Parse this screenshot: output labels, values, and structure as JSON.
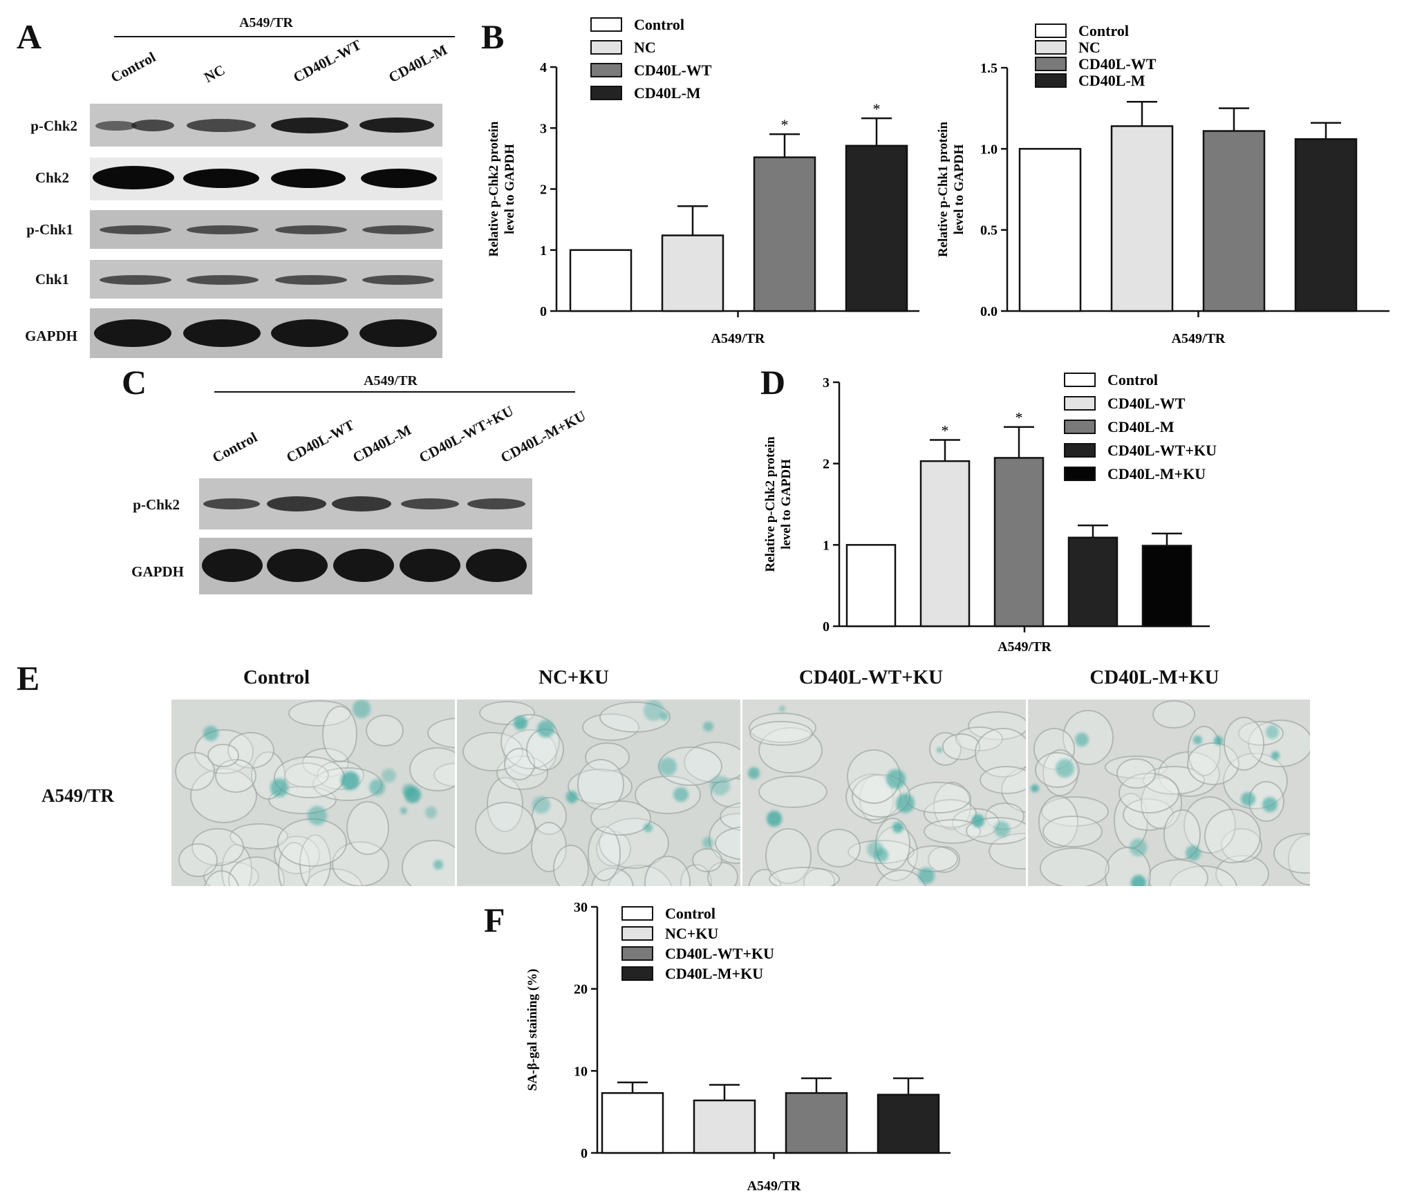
{
  "panel_labels": {
    "a": "A",
    "b": "B",
    "c": "C",
    "d": "D",
    "e": "E",
    "f": "F"
  },
  "blot_a": {
    "header": "A549/TR",
    "lanes": [
      "Control",
      "NC",
      "CD40L-WT",
      "CD40L-M"
    ],
    "rows": [
      "p-Chk2",
      "Chk2",
      "p-Chk1",
      "Chk1",
      "GAPDH"
    ]
  },
  "blot_c": {
    "header": "A549/TR",
    "lanes": [
      "Control",
      "CD40L-WT",
      "CD40L-M",
      "CD40L-WT+KU",
      "CD40L-M+KU"
    ],
    "rows": [
      "p-Chk2",
      "GAPDH"
    ]
  },
  "micrographs_e": {
    "columns": [
      "Control",
      "NC+KU",
      "CD40L-WT+KU",
      "CD40L-M+KU"
    ],
    "row_label": "A549/TR",
    "stain_color": "#3fa9a0"
  },
  "chart_data": [
    {
      "id": "B-left",
      "type": "bar",
      "categories": [
        "Control",
        "NC",
        "CD40L-WT",
        "CD40L-M"
      ],
      "values": [
        1.0,
        1.24,
        2.52,
        2.71
      ],
      "errors": [
        0,
        0.48,
        0.38,
        0.45
      ],
      "significant": [
        false,
        false,
        true,
        true
      ],
      "sig_marker": "*",
      "colors": [
        "#ffffff",
        "#e3e3e3",
        "#7a7a7a",
        "#232323"
      ],
      "ylabel_line1": "Relative  p-Chk2 protein",
      "ylabel_line2": "level to GAPDH",
      "xlabel": "A549/TR",
      "ylim": [
        0,
        4
      ],
      "yticks": [
        "0",
        "1",
        "2",
        "3",
        "4"
      ],
      "legend": [
        "Control",
        "NC",
        "CD40L-WT",
        "CD40L-M"
      ],
      "legend_position": "top-left"
    },
    {
      "id": "B-right",
      "type": "bar",
      "categories": [
        "Control",
        "NC",
        "CD40L-WT",
        "CD40L-M"
      ],
      "values": [
        1.0,
        1.14,
        1.11,
        1.06
      ],
      "errors": [
        0,
        0.15,
        0.14,
        0.1
      ],
      "significant": [
        false,
        false,
        false,
        false
      ],
      "sig_marker": "*",
      "colors": [
        "#ffffff",
        "#e3e3e3",
        "#7a7a7a",
        "#232323"
      ],
      "ylabel_line1": "Relative  p-Chk1 protein",
      "ylabel_line2": "level to GAPDH",
      "xlabel": "A549/TR",
      "ylim": [
        0,
        1.5
      ],
      "yticks": [
        "0.0",
        "0.5",
        "1.0",
        "1.5"
      ],
      "legend": [
        "Control",
        "NC",
        "CD40L-WT",
        "CD40L-M"
      ],
      "legend_position": "top-left"
    },
    {
      "id": "D",
      "type": "bar",
      "categories": [
        "Control",
        "CD40L-WT",
        "CD40L-M",
        "CD40L-WT+KU",
        "CD40L-M+KU"
      ],
      "values": [
        1.0,
        2.03,
        2.07,
        1.09,
        0.99
      ],
      "errors": [
        0,
        0.26,
        0.38,
        0.15,
        0.15
      ],
      "significant": [
        false,
        true,
        true,
        false,
        false
      ],
      "sig_marker": "*",
      "colors": [
        "#ffffff",
        "#e3e3e3",
        "#7a7a7a",
        "#232323",
        "#050505"
      ],
      "ylabel_line1": "Relative p-Chk2 protein",
      "ylabel_line2": "level to GAPDH",
      "xlabel": "A549/TR",
      "ylim": [
        0,
        3
      ],
      "yticks": [
        "0",
        "1",
        "2",
        "3"
      ],
      "legend": [
        "Control",
        "CD40L-WT",
        "CD40L-M",
        "CD40L-WT+KU",
        "CD40L-M+KU"
      ],
      "legend_position": "top-right"
    },
    {
      "id": "F",
      "type": "bar",
      "categories": [
        "Control",
        "NC+KU",
        "CD40L-WT+KU",
        "CD40L-M+KU"
      ],
      "values": [
        7.3,
        6.4,
        7.3,
        7.1
      ],
      "errors": [
        1.3,
        1.9,
        1.8,
        2.0
      ],
      "significant": [
        false,
        false,
        false,
        false
      ],
      "sig_marker": "*",
      "colors": [
        "#ffffff",
        "#e3e3e3",
        "#7a7a7a",
        "#232323"
      ],
      "ylabel_line1": "SA-β-gal staining (%)",
      "ylabel_line2": "",
      "xlabel": "A549/TR",
      "ylim": [
        0,
        30
      ],
      "yticks": [
        "0",
        "10",
        "20",
        "30"
      ],
      "legend": [
        "Control",
        "NC+KU",
        "CD40L-WT+KU",
        "CD40L-M+KU"
      ],
      "legend_position": "top-left"
    }
  ]
}
